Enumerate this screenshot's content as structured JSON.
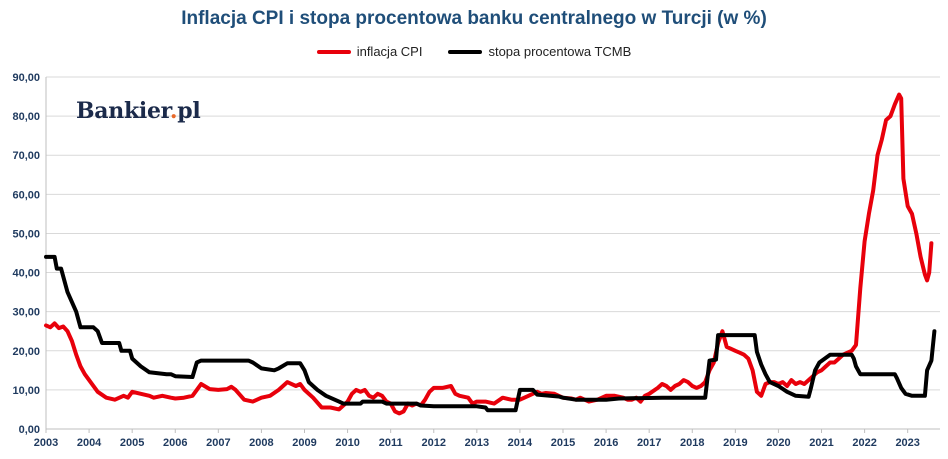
{
  "chart_data": {
    "type": "line",
    "title": "Inflacja CPI i stopa procentowa banku centralnego w Turcji (w %)",
    "xlabel": "",
    "ylabel": "",
    "xlim": [
      2003.0,
      2023.75
    ],
    "ylim": [
      0,
      90
    ],
    "y_ticks": [
      "0,00",
      "10,00",
      "20,00",
      "30,00",
      "40,00",
      "50,00",
      "60,00",
      "70,00",
      "80,00",
      "90,00"
    ],
    "x_ticks": [
      "2003",
      "2004",
      "2005",
      "2006",
      "2007",
      "2008",
      "2009",
      "2010",
      "2011",
      "2012",
      "2013",
      "2014",
      "2015",
      "2016",
      "2017",
      "2018",
      "2019",
      "2020",
      "2021",
      "2022",
      "2023"
    ],
    "grid": "horizontal",
    "legend_position": "top",
    "series": [
      {
        "name": "inflacja CPI",
        "color": "#e8000b",
        "points": [
          [
            2003.0,
            26.5
          ],
          [
            2003.1,
            26.0
          ],
          [
            2003.2,
            27.0
          ],
          [
            2003.3,
            25.8
          ],
          [
            2003.4,
            26.2
          ],
          [
            2003.5,
            25.0
          ],
          [
            2003.6,
            22.5
          ],
          [
            2003.7,
            19.0
          ],
          [
            2003.8,
            16.0
          ],
          [
            2003.9,
            14.0
          ],
          [
            2004.0,
            12.5
          ],
          [
            2004.2,
            9.5
          ],
          [
            2004.4,
            8.0
          ],
          [
            2004.6,
            7.5
          ],
          [
            2004.8,
            8.5
          ],
          [
            2004.9,
            8.0
          ],
          [
            2005.0,
            9.5
          ],
          [
            2005.2,
            9.0
          ],
          [
            2005.4,
            8.5
          ],
          [
            2005.5,
            8.0
          ],
          [
            2005.7,
            8.5
          ],
          [
            2005.9,
            8.0
          ],
          [
            2006.0,
            7.8
          ],
          [
            2006.2,
            8.0
          ],
          [
            2006.4,
            8.5
          ],
          [
            2006.5,
            10.0
          ],
          [
            2006.6,
            11.5
          ],
          [
            2006.8,
            10.2
          ],
          [
            2007.0,
            10.0
          ],
          [
            2007.2,
            10.2
          ],
          [
            2007.3,
            10.8
          ],
          [
            2007.4,
            10.0
          ],
          [
            2007.6,
            7.5
          ],
          [
            2007.8,
            7.0
          ],
          [
            2008.0,
            8.0
          ],
          [
            2008.2,
            8.5
          ],
          [
            2008.4,
            10.0
          ],
          [
            2008.5,
            11.0
          ],
          [
            2008.6,
            12.0
          ],
          [
            2008.8,
            11.0
          ],
          [
            2008.9,
            11.5
          ],
          [
            2009.0,
            10.0
          ],
          [
            2009.2,
            8.0
          ],
          [
            2009.4,
            5.5
          ],
          [
            2009.6,
            5.5
          ],
          [
            2009.8,
            5.0
          ],
          [
            2009.9,
            6.0
          ],
          [
            2010.0,
            7.0
          ],
          [
            2010.1,
            9.0
          ],
          [
            2010.2,
            10.0
          ],
          [
            2010.3,
            9.5
          ],
          [
            2010.4,
            10.0
          ],
          [
            2010.5,
            8.5
          ],
          [
            2010.6,
            8.0
          ],
          [
            2010.7,
            9.0
          ],
          [
            2010.8,
            8.5
          ],
          [
            2010.9,
            7.0
          ],
          [
            2011.0,
            6.5
          ],
          [
            2011.1,
            4.5
          ],
          [
            2011.2,
            4.0
          ],
          [
            2011.3,
            4.5
          ],
          [
            2011.4,
            6.5
          ],
          [
            2011.5,
            6.0
          ],
          [
            2011.6,
            6.5
          ],
          [
            2011.7,
            6.0
          ],
          [
            2011.8,
            7.5
          ],
          [
            2011.9,
            9.5
          ],
          [
            2012.0,
            10.5
          ],
          [
            2012.2,
            10.5
          ],
          [
            2012.4,
            11.0
          ],
          [
            2012.5,
            9.0
          ],
          [
            2012.6,
            8.5
          ],
          [
            2012.8,
            8.0
          ],
          [
            2012.9,
            6.5
          ],
          [
            2013.0,
            7.0
          ],
          [
            2013.2,
            7.0
          ],
          [
            2013.4,
            6.5
          ],
          [
            2013.6,
            8.0
          ],
          [
            2013.8,
            7.5
          ],
          [
            2013.9,
            7.5
          ],
          [
            2014.0,
            7.5
          ],
          [
            2014.2,
            8.5
          ],
          [
            2014.4,
            9.5
          ],
          [
            2014.5,
            9.0
          ],
          [
            2014.6,
            9.2
          ],
          [
            2014.8,
            9.0
          ],
          [
            2014.9,
            8.5
          ],
          [
            2015.0,
            8.0
          ],
          [
            2015.2,
            7.8
          ],
          [
            2015.3,
            7.5
          ],
          [
            2015.4,
            8.0
          ],
          [
            2015.6,
            7.0
          ],
          [
            2015.8,
            7.5
          ],
          [
            2016.0,
            8.5
          ],
          [
            2016.2,
            8.5
          ],
          [
            2016.4,
            8.0
          ],
          [
            2016.5,
            7.5
          ],
          [
            2016.6,
            7.5
          ],
          [
            2016.7,
            8.0
          ],
          [
            2016.8,
            7.0
          ],
          [
            2016.9,
            8.5
          ],
          [
            2017.0,
            9.0
          ],
          [
            2017.2,
            10.5
          ],
          [
            2017.3,
            11.5
          ],
          [
            2017.4,
            11.0
          ],
          [
            2017.5,
            10.0
          ],
          [
            2017.6,
            11.0
          ],
          [
            2017.7,
            11.5
          ],
          [
            2017.8,
            12.5
          ],
          [
            2017.9,
            12.0
          ],
          [
            2018.0,
            11.0
          ],
          [
            2018.1,
            10.5
          ],
          [
            2018.2,
            11.0
          ],
          [
            2018.3,
            12.0
          ],
          [
            2018.4,
            15.0
          ],
          [
            2018.5,
            17.0
          ],
          [
            2018.6,
            22.0
          ],
          [
            2018.7,
            25.0
          ],
          [
            2018.8,
            21.0
          ],
          [
            2018.9,
            20.5
          ],
          [
            2019.0,
            20.0
          ],
          [
            2019.1,
            19.5
          ],
          [
            2019.2,
            19.0
          ],
          [
            2019.3,
            18.0
          ],
          [
            2019.4,
            15.0
          ],
          [
            2019.5,
            9.5
          ],
          [
            2019.6,
            8.5
          ],
          [
            2019.7,
            11.5
          ],
          [
            2019.8,
            12.0
          ],
          [
            2019.9,
            12.0
          ],
          [
            2020.0,
            11.5
          ],
          [
            2020.1,
            12.0
          ],
          [
            2020.2,
            11.0
          ],
          [
            2020.3,
            12.5
          ],
          [
            2020.4,
            11.5
          ],
          [
            2020.5,
            12.0
          ],
          [
            2020.6,
            11.5
          ],
          [
            2020.7,
            12.5
          ],
          [
            2020.8,
            13.5
          ],
          [
            2020.9,
            14.5
          ],
          [
            2021.0,
            15.0
          ],
          [
            2021.1,
            16.0
          ],
          [
            2021.2,
            17.0
          ],
          [
            2021.3,
            17.0
          ],
          [
            2021.4,
            18.0
          ],
          [
            2021.5,
            19.0
          ],
          [
            2021.6,
            19.5
          ],
          [
            2021.7,
            20.0
          ],
          [
            2021.8,
            21.5
          ],
          [
            2021.9,
            36.0
          ],
          [
            2022.0,
            48.0
          ],
          [
            2022.1,
            55.0
          ],
          [
            2022.2,
            61.0
          ],
          [
            2022.3,
            70.0
          ],
          [
            2022.4,
            74.0
          ],
          [
            2022.5,
            79.0
          ],
          [
            2022.6,
            80.0
          ],
          [
            2022.7,
            83.0
          ],
          [
            2022.8,
            85.5
          ],
          [
            2022.85,
            84.5
          ],
          [
            2022.9,
            64.0
          ],
          [
            2023.0,
            57.0
          ],
          [
            2023.1,
            55.0
          ],
          [
            2023.2,
            50.0
          ],
          [
            2023.3,
            44.0
          ],
          [
            2023.4,
            39.5
          ],
          [
            2023.45,
            38.0
          ],
          [
            2023.5,
            40.0
          ],
          [
            2023.55,
            47.5
          ]
        ]
      },
      {
        "name": "stopa procentowa TCMB",
        "color": "#000000",
        "points": [
          [
            2003.0,
            44.0
          ],
          [
            2003.2,
            44.0
          ],
          [
            2003.25,
            41.0
          ],
          [
            2003.35,
            41.0
          ],
          [
            2003.5,
            35.0
          ],
          [
            2003.7,
            30.0
          ],
          [
            2003.8,
            26.0
          ],
          [
            2004.1,
            26.0
          ],
          [
            2004.2,
            25.0
          ],
          [
            2004.3,
            22.0
          ],
          [
            2004.7,
            22.0
          ],
          [
            2004.75,
            20.0
          ],
          [
            2004.95,
            20.0
          ],
          [
            2005.0,
            18.0
          ],
          [
            2005.2,
            16.0
          ],
          [
            2005.4,
            14.5
          ],
          [
            2005.8,
            14.0
          ],
          [
            2005.9,
            14.0
          ],
          [
            2006.0,
            13.5
          ],
          [
            2006.4,
            13.3
          ],
          [
            2006.5,
            17.0
          ],
          [
            2006.6,
            17.5
          ],
          [
            2007.7,
            17.5
          ],
          [
            2007.8,
            17.0
          ],
          [
            2008.0,
            15.5
          ],
          [
            2008.3,
            15.0
          ],
          [
            2008.4,
            15.5
          ],
          [
            2008.6,
            16.8
          ],
          [
            2008.9,
            16.8
          ],
          [
            2009.0,
            15.0
          ],
          [
            2009.1,
            12.0
          ],
          [
            2009.3,
            10.0
          ],
          [
            2009.5,
            8.5
          ],
          [
            2009.8,
            7.0
          ],
          [
            2009.9,
            6.5
          ],
          [
            2010.3,
            6.5
          ],
          [
            2010.35,
            7.0
          ],
          [
            2010.8,
            7.0
          ],
          [
            2010.9,
            6.5
          ],
          [
            2011.6,
            6.5
          ],
          [
            2011.7,
            6.0
          ],
          [
            2012.0,
            5.8
          ],
          [
            2013.0,
            5.8
          ],
          [
            2013.2,
            5.5
          ],
          [
            2013.25,
            4.8
          ],
          [
            2013.9,
            4.8
          ],
          [
            2014.0,
            10.0
          ],
          [
            2014.3,
            10.0
          ],
          [
            2014.4,
            8.8
          ],
          [
            2014.7,
            8.5
          ],
          [
            2014.9,
            8.3
          ],
          [
            2015.0,
            8.0
          ],
          [
            2015.3,
            7.5
          ],
          [
            2016.0,
            7.5
          ],
          [
            2016.3,
            7.8
          ],
          [
            2017.3,
            8.0
          ],
          [
            2018.3,
            8.0
          ],
          [
            2018.4,
            17.5
          ],
          [
            2018.55,
            17.75
          ],
          [
            2018.6,
            24.0
          ],
          [
            2019.45,
            24.0
          ],
          [
            2019.5,
            19.75
          ],
          [
            2019.6,
            16.5
          ],
          [
            2019.7,
            14.0
          ],
          [
            2019.8,
            12.0
          ],
          [
            2020.0,
            11.0
          ],
          [
            2020.2,
            9.5
          ],
          [
            2020.4,
            8.5
          ],
          [
            2020.7,
            8.25
          ],
          [
            2020.75,
            10.25
          ],
          [
            2020.85,
            15.0
          ],
          [
            2020.95,
            17.0
          ],
          [
            2021.2,
            19.0
          ],
          [
            2021.7,
            19.0
          ],
          [
            2021.75,
            18.0
          ],
          [
            2021.8,
            16.0
          ],
          [
            2021.9,
            14.0
          ],
          [
            2022.7,
            14.0
          ],
          [
            2022.75,
            13.0
          ],
          [
            2022.85,
            10.5
          ],
          [
            2022.95,
            9.0
          ],
          [
            2023.1,
            8.5
          ],
          [
            2023.4,
            8.5
          ],
          [
            2023.45,
            15.0
          ],
          [
            2023.55,
            17.5
          ],
          [
            2023.62,
            25.0
          ]
        ]
      }
    ]
  }
}
